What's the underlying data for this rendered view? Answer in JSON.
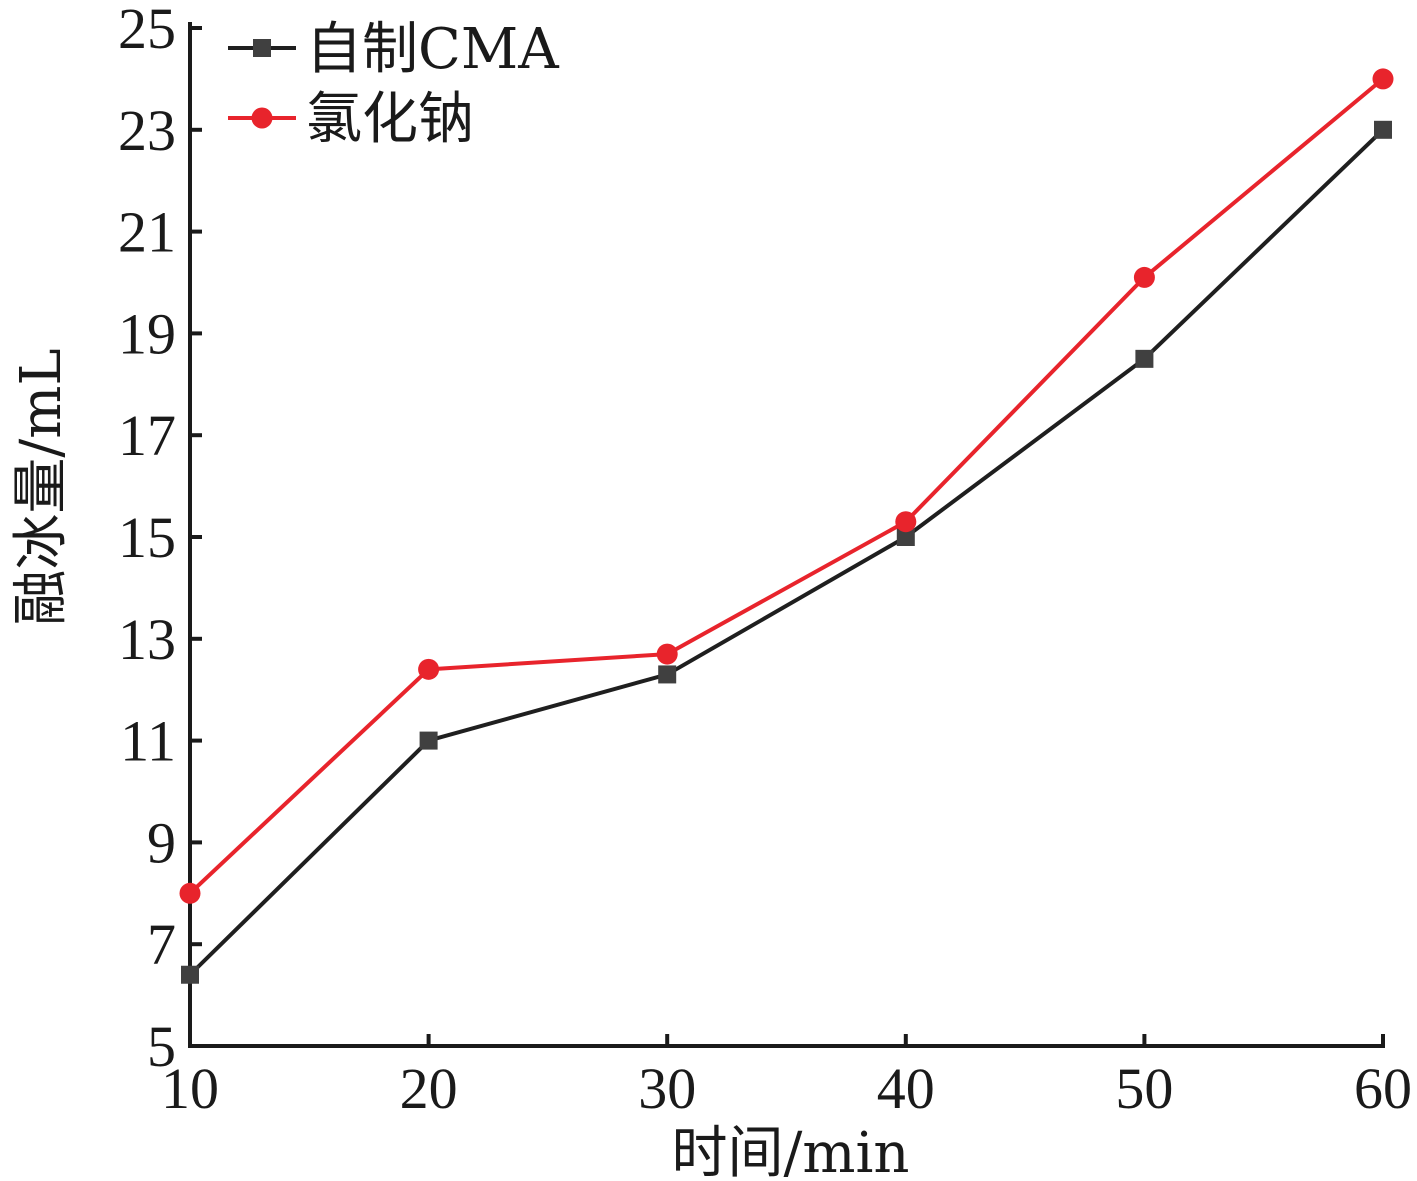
{
  "chart_data": {
    "type": "line",
    "xlabel": "时间/min",
    "ylabel": "融冰量/mL",
    "x": [
      10,
      20,
      30,
      40,
      50,
      60
    ],
    "xlim": [
      10,
      60
    ],
    "ylim": [
      5,
      25
    ],
    "xticks": [
      "10",
      "20",
      "30",
      "40",
      "50",
      "60"
    ],
    "yticks": [
      "5",
      "7",
      "9",
      "11",
      "13",
      "15",
      "17",
      "19",
      "21",
      "23",
      "25"
    ],
    "grid": false,
    "legend_position": "top-left",
    "series": [
      {
        "name": "自制CMA",
        "values": [
          6.4,
          11.0,
          12.3,
          15.0,
          18.5,
          23.0
        ],
        "color": "#1f1f1f",
        "marker_color": "#404040",
        "marker": "square"
      },
      {
        "name": "氯化钠",
        "values": [
          8.0,
          12.4,
          12.7,
          15.3,
          20.1,
          24.0
        ],
        "color": "#e8242c",
        "marker_color": "#e8242c",
        "marker": "circle"
      }
    ]
  }
}
